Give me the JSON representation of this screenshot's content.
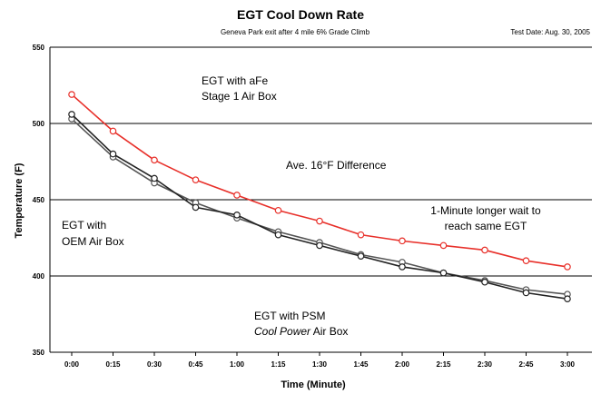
{
  "chart_data": {
    "type": "line",
    "title": "EGT Cool Down Rate",
    "subtitle": "Geneva Park exit after 4 mile 6% Grade Climb",
    "test_date": "Test Date: Aug. 30, 2005",
    "xlabel": "Time (Minute)",
    "ylabel": "Temperature (F)",
    "categories": [
      "0:00",
      "0:15",
      "0:30",
      "0:45",
      "1:00",
      "1:15",
      "1:30",
      "1:45",
      "2:00",
      "2:15",
      "2:30",
      "2:45",
      "3:00"
    ],
    "ylim": [
      350,
      550
    ],
    "yticks": [
      350,
      400,
      450,
      500,
      550
    ],
    "grid": "horizontal",
    "series": [
      {
        "color": "#e8302a",
        "values": [
          519,
          495,
          476,
          463,
          453,
          443,
          436,
          427,
          423,
          420,
          417,
          410,
          406
        ]
      },
      {
        "color": "#222222",
        "values": [
          506,
          480,
          464,
          445,
          440,
          427,
          420,
          413,
          406,
          402,
          396,
          389,
          385
        ]
      },
      {
        "color": "#555555",
        "values": [
          503,
          478,
          461,
          448,
          438,
          429,
          422,
          414,
          409,
          402,
          397,
          391,
          388
        ]
      }
    ],
    "annotations": [
      {
        "lines": [
          "EGT with aFe",
          "Stage 1 Air Box"
        ],
        "style": "normal"
      },
      {
        "lines": [
          "Ave. 16°F Difference"
        ],
        "style": "normal"
      },
      {
        "lines": [
          "1-Minute longer wait to",
          "reach same EGT"
        ],
        "style": "normal"
      },
      {
        "lines": [
          "EGT with",
          "OEM Air Box"
        ],
        "style": "normal"
      },
      {
        "lines": [
          "EGT with PSM"
        ],
        "style": "normal"
      },
      {
        "lines": [
          "Cool Power Air Box"
        ],
        "style": "italic-part",
        "italic": "Cool Power",
        "rest": " Air Box"
      }
    ]
  }
}
